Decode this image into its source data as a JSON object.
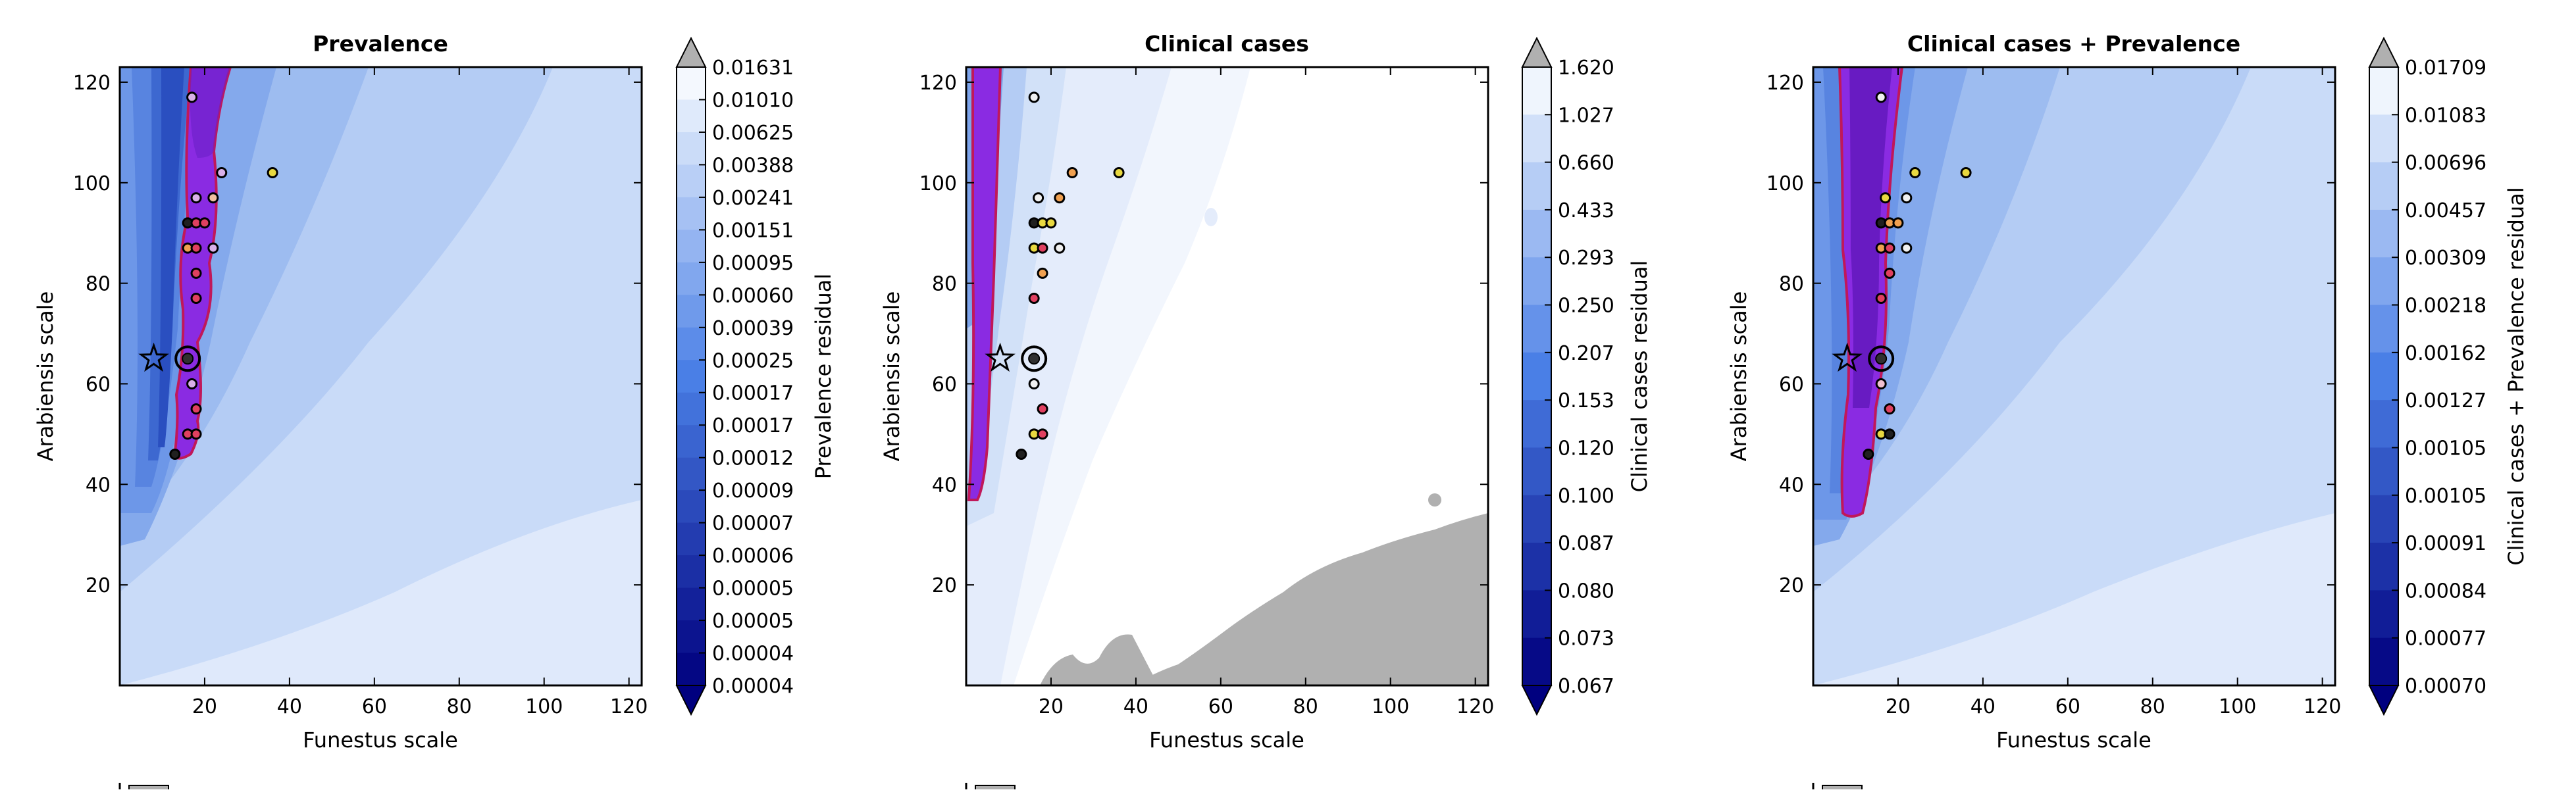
{
  "chart_data": [
    {
      "type": "heatmap",
      "title": "Prevalence",
      "xlabel": "Funestus scale",
      "ylabel": "Arabiensis scale",
      "xlim": [
        0,
        123
      ],
      "ylim": [
        0,
        123
      ],
      "xticks": [
        "20",
        "40",
        "60",
        "80",
        "100",
        "120"
      ],
      "yticks": [
        "20",
        "40",
        "60",
        "80",
        "100",
        "120"
      ],
      "colorbar_label": "Prevalence residual",
      "colorbar_ticks": [
        "0.01631",
        "0.01010",
        "0.00625",
        "0.00388",
        "0.00241",
        "0.00151",
        "0.00095",
        "0.00060",
        "0.00039",
        "0.00025",
        "0.00017",
        "0.00017",
        "0.00012",
        "0.00009",
        "0.00007",
        "0.00006",
        "0.00005",
        "0.00005",
        "0.00004",
        "0.00004"
      ],
      "grey_region": false,
      "star_point": [
        8,
        65
      ],
      "ringed_point": [
        16,
        65
      ],
      "markers": [
        {
          "x": 17,
          "y": 117,
          "c": "#d9b0e8"
        },
        {
          "x": 36,
          "y": 102,
          "c": "#e8d840"
        },
        {
          "x": 24,
          "y": 102,
          "c": "#d9b0e8"
        },
        {
          "x": 22,
          "y": 97,
          "c": "#f0c0a0"
        },
        {
          "x": 18,
          "y": 97,
          "c": "#d9b0e8"
        },
        {
          "x": 16,
          "y": 92,
          "c": "#202020"
        },
        {
          "x": 18,
          "y": 92,
          "c": "#e04060"
        },
        {
          "x": 20,
          "y": 92,
          "c": "#e04060"
        },
        {
          "x": 16,
          "y": 87,
          "c": "#f0a050"
        },
        {
          "x": 18,
          "y": 87,
          "c": "#e04060"
        },
        {
          "x": 22,
          "y": 87,
          "c": "#d9b0e8"
        },
        {
          "x": 18,
          "y": 82,
          "c": "#e04060"
        },
        {
          "x": 18,
          "y": 77,
          "c": "#e04060"
        },
        {
          "x": 17,
          "y": 60,
          "c": "#d9b0e8"
        },
        {
          "x": 18,
          "y": 55,
          "c": "#e04060"
        },
        {
          "x": 16,
          "y": 50,
          "c": "#e04060"
        },
        {
          "x": 18,
          "y": 50,
          "c": "#e04060"
        },
        {
          "x": 13,
          "y": 46,
          "c": "#202020"
        }
      ]
    },
    {
      "type": "heatmap",
      "title": "Clinical cases",
      "xlabel": "Funestus scale",
      "ylabel": "Arabiensis scale",
      "xlim": [
        0,
        123
      ],
      "ylim": [
        0,
        123
      ],
      "xticks": [
        "20",
        "40",
        "60",
        "80",
        "100",
        "120"
      ],
      "yticks": [
        "20",
        "40",
        "60",
        "80",
        "100",
        "120"
      ],
      "colorbar_label": "Clinical cases residual",
      "colorbar_ticks": [
        "1.620",
        "1.027",
        "0.660",
        "0.433",
        "0.293",
        "0.250",
        "0.207",
        "0.153",
        "0.120",
        "0.100",
        "0.087",
        "0.080",
        "0.073",
        "0.067"
      ],
      "grey_region": true,
      "star_point": [
        8,
        65
      ],
      "ringed_point": [
        16,
        65
      ],
      "markers": [
        {
          "x": 16,
          "y": 117,
          "c": "#f0f0f0"
        },
        {
          "x": 36,
          "y": 102,
          "c": "#e8d840"
        },
        {
          "x": 25,
          "y": 102,
          "c": "#f0a050"
        },
        {
          "x": 22,
          "y": 97,
          "c": "#f0a050"
        },
        {
          "x": 17,
          "y": 97,
          "c": "#f0f0f0"
        },
        {
          "x": 16,
          "y": 92,
          "c": "#202020"
        },
        {
          "x": 18,
          "y": 92,
          "c": "#e8d840"
        },
        {
          "x": 20,
          "y": 92,
          "c": "#e8d840"
        },
        {
          "x": 16,
          "y": 87,
          "c": "#e8d840"
        },
        {
          "x": 18,
          "y": 87,
          "c": "#e04060"
        },
        {
          "x": 22,
          "y": 87,
          "c": "#f0f0f0"
        },
        {
          "x": 18,
          "y": 82,
          "c": "#f0a050"
        },
        {
          "x": 16,
          "y": 77,
          "c": "#e04060"
        },
        {
          "x": 16,
          "y": 60,
          "c": "#f0f0f0"
        },
        {
          "x": 18,
          "y": 55,
          "c": "#e04060"
        },
        {
          "x": 16,
          "y": 50,
          "c": "#e8d840"
        },
        {
          "x": 18,
          "y": 50,
          "c": "#e04060"
        },
        {
          "x": 13,
          "y": 46,
          "c": "#202020"
        }
      ]
    },
    {
      "type": "heatmap",
      "title": "Clinical cases + Prevalence",
      "xlabel": "Funestus scale",
      "ylabel": "Arabiensis scale",
      "xlim": [
        0,
        123
      ],
      "ylim": [
        0,
        123
      ],
      "xticks": [
        "20",
        "40",
        "60",
        "80",
        "100",
        "120"
      ],
      "yticks": [
        "20",
        "40",
        "60",
        "80",
        "100",
        "120"
      ],
      "colorbar_label": "Clinical cases + Prevalence residual",
      "colorbar_ticks": [
        "0.01709",
        "0.01083",
        "0.00696",
        "0.00457",
        "0.00309",
        "0.00218",
        "0.00162",
        "0.00127",
        "0.00105",
        "0.00105",
        "0.00091",
        "0.00084",
        "0.00077",
        "0.00070"
      ],
      "grey_region": false,
      "star_point": [
        8,
        65
      ],
      "ringed_point": [
        16,
        65
      ],
      "markers": [
        {
          "x": 16,
          "y": 117,
          "c": "#f0f0f0"
        },
        {
          "x": 36,
          "y": 102,
          "c": "#e8d840"
        },
        {
          "x": 24,
          "y": 102,
          "c": "#e8d840"
        },
        {
          "x": 22,
          "y": 97,
          "c": "#f0f0f0"
        },
        {
          "x": 17,
          "y": 97,
          "c": "#e8d840"
        },
        {
          "x": 16,
          "y": 92,
          "c": "#202020"
        },
        {
          "x": 18,
          "y": 92,
          "c": "#f0a050"
        },
        {
          "x": 20,
          "y": 92,
          "c": "#f0a050"
        },
        {
          "x": 16,
          "y": 87,
          "c": "#f0a050"
        },
        {
          "x": 18,
          "y": 87,
          "c": "#e04060"
        },
        {
          "x": 22,
          "y": 87,
          "c": "#f0f0f0"
        },
        {
          "x": 18,
          "y": 82,
          "c": "#e04060"
        },
        {
          "x": 16,
          "y": 77,
          "c": "#e04060"
        },
        {
          "x": 16,
          "y": 60,
          "c": "#f0c0d0"
        },
        {
          "x": 18,
          "y": 55,
          "c": "#e04060"
        },
        {
          "x": 16,
          "y": 50,
          "c": "#e8d840"
        },
        {
          "x": 18,
          "y": 50,
          "c": "#202020"
        },
        {
          "x": 13,
          "y": 46,
          "c": "#202020"
        }
      ]
    }
  ],
  "colors": {
    "band_0": "#00007f",
    "band_mid": "#4a7fe6",
    "band_high": "#d6e4fa",
    "band_top": "#ffffff",
    "grey_region": "#b0b0b0",
    "highlight_fill": "#8a2be2",
    "highlight_edge": "#c0185a"
  }
}
